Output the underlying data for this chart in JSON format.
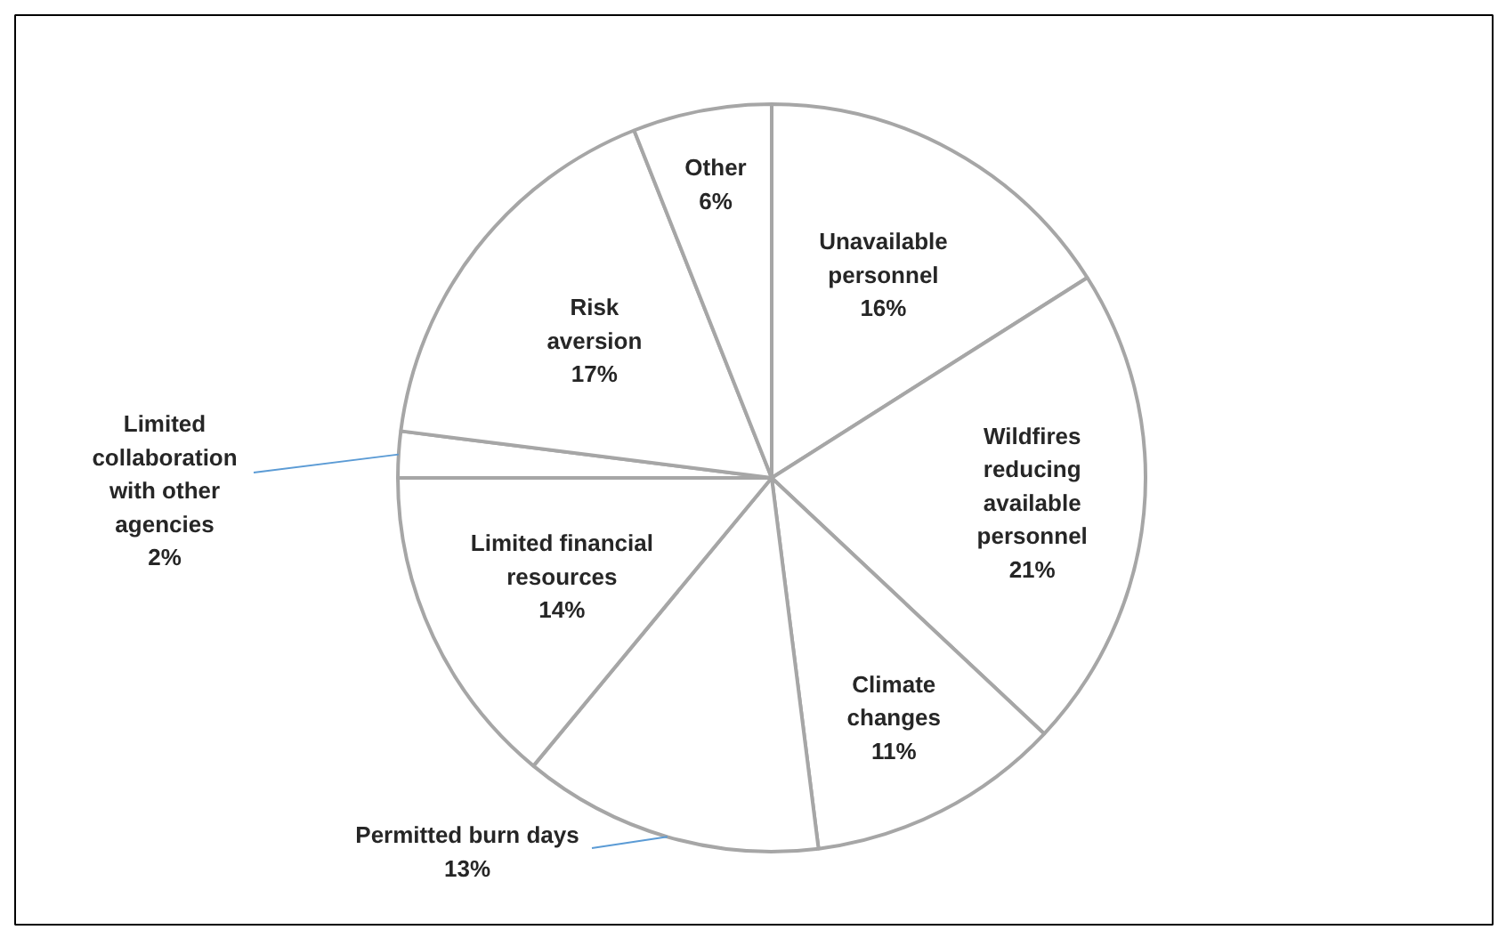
{
  "chart_data": {
    "type": "pie",
    "categories": [
      "Unavailable personnel",
      "Wildfires reducing available personnel",
      "Climate changes",
      "Permitted burn days",
      "Limited financial resources",
      "Limited collaboration with other agencies",
      "Risk aversion",
      "Other"
    ],
    "values": [
      16,
      21,
      11,
      13,
      14,
      2,
      17,
      6
    ],
    "value_labels": [
      "16%",
      "21%",
      "11%",
      "13%",
      "14%",
      "2%",
      "17%",
      "6%"
    ],
    "colors": [
      "#ffffff",
      "#ffffff",
      "#ffffff",
      "#ffffff",
      "#ffffff",
      "#ffffff",
      "#ffffff",
      "#ffffff"
    ],
    "legend": false
  }
}
